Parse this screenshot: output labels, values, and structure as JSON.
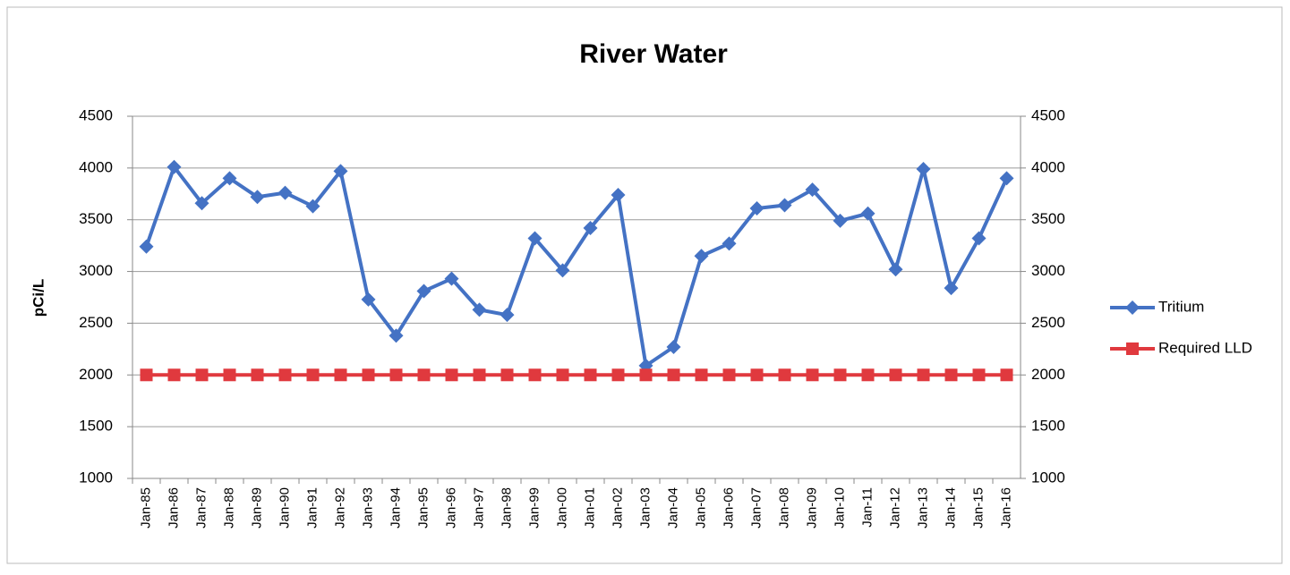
{
  "chart_data": {
    "type": "line",
    "title": "River Water",
    "y_label": "pCi/L",
    "categories": [
      "Jan-85",
      "Jan-86",
      "Jan-87",
      "Jan-88",
      "Jan-89",
      "Jan-90",
      "Jan-91",
      "Jan-92",
      "Jan-93",
      "Jan-94",
      "Jan-95",
      "Jan-96",
      "Jan-97",
      "Jan-98",
      "Jan-99",
      "Jan-00",
      "Jan-01",
      "Jan-02",
      "Jan-03",
      "Jan-04",
      "Jan-05",
      "Jan-06",
      "Jan-07",
      "Jan-08",
      "Jan-09",
      "Jan-10",
      "Jan-11",
      "Jan-12",
      "Jan-13",
      "Jan-14",
      "Jan-15",
      "Jan-16"
    ],
    "series": [
      {
        "name": "Tritium",
        "color": "#4472c4",
        "marker": "diamond",
        "values": [
          3240,
          4010,
          3660,
          3900,
          3720,
          3760,
          3630,
          3970,
          2730,
          2380,
          2810,
          2930,
          2630,
          2580,
          3320,
          3010,
          3420,
          3740,
          2090,
          2270,
          3150,
          3270,
          3610,
          3640,
          3790,
          3490,
          3560,
          3020,
          3990,
          2840,
          3320,
          3900
        ]
      },
      {
        "name": "Required LLD",
        "color": "#e0393e",
        "marker": "square",
        "axis": "y2",
        "values": [
          2000,
          2000,
          2000,
          2000,
          2000,
          2000,
          2000,
          2000,
          2000,
          2000,
          2000,
          2000,
          2000,
          2000,
          2000,
          2000,
          2000,
          2000,
          2000,
          2000,
          2000,
          2000,
          2000,
          2000,
          2000,
          2000,
          2000,
          2000,
          2000,
          2000,
          2000,
          2000
        ]
      }
    ],
    "ylim": [
      1000,
      4500
    ],
    "yticks": [
      1000,
      1500,
      2000,
      2500,
      3000,
      3500,
      4000,
      4500
    ],
    "y2lim": [
      1000,
      4500
    ],
    "y2ticks": [
      1000,
      1500,
      2000,
      2500,
      3000,
      3500,
      4000,
      4500
    ],
    "grid": true,
    "legend": "right"
  }
}
